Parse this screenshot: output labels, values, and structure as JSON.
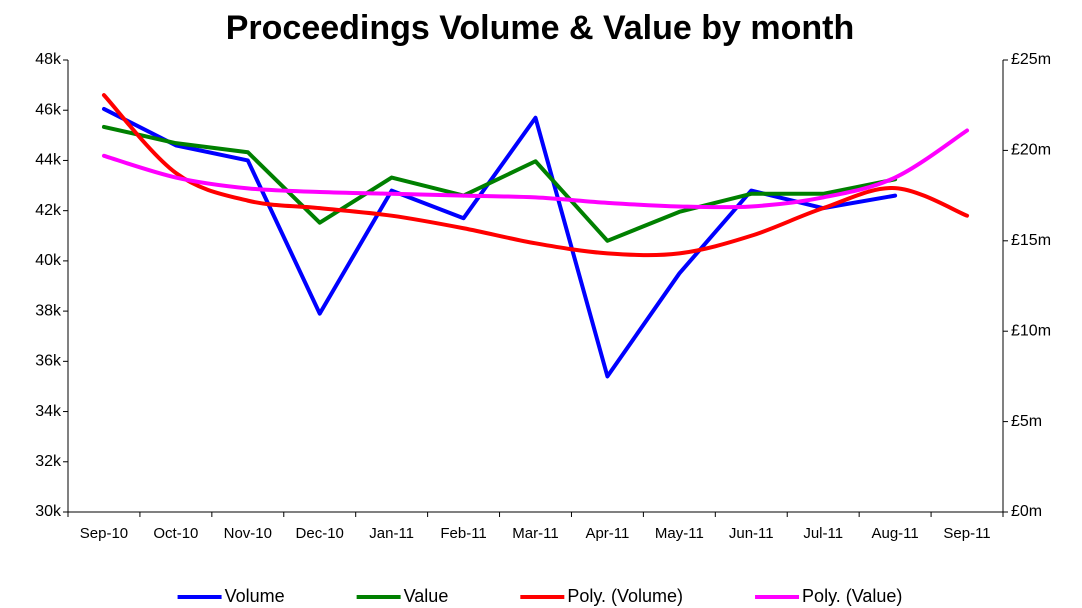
{
  "chart_data": {
    "type": "line",
    "title": "Proceedings Volume & Value by month",
    "categories": [
      "Sep-10",
      "Oct-10",
      "Nov-10",
      "Dec-10",
      "Jan-11",
      "Feb-11",
      "Mar-11",
      "Apr-11",
      "May-11",
      "Jun-11",
      "Jul-11",
      "Aug-11",
      "Sep-11"
    ],
    "series": [
      {
        "name": "Volume",
        "color": "#0000ff",
        "smooth": false,
        "values": [
          46050,
          44600,
          44000,
          37900,
          42800,
          41700,
          45700,
          35400,
          39500,
          42800,
          42100,
          42600,
          null
        ]
      },
      {
        "name": "Value",
        "color": "#008000",
        "axis": "y2",
        "smooth": false,
        "values": [
          21.3,
          20.4,
          19.9,
          16.0,
          18.5,
          17.5,
          19.4,
          15.0,
          16.6,
          17.6,
          17.6,
          18.4,
          null
        ]
      },
      {
        "name": "Poly. (Volume)",
        "color": "#ff0000",
        "smooth": true,
        "values": [
          46600,
          43500,
          42400,
          42100,
          41800,
          41300,
          40700,
          40300,
          40300,
          41000,
          42100,
          42900,
          41800
        ]
      },
      {
        "name": "Poly. (Value)",
        "color": "#ff00ff",
        "axis": "y2",
        "smooth": true,
        "values": [
          19.7,
          18.5,
          17.9,
          17.7,
          17.6,
          17.5,
          17.4,
          17.1,
          16.9,
          16.9,
          17.4,
          18.5,
          21.1
        ]
      }
    ],
    "ylim": [
      30000,
      48000
    ],
    "yticks": [
      {
        "value": 30000,
        "label": "30k"
      },
      {
        "value": 32000,
        "label": "32k"
      },
      {
        "value": 34000,
        "label": "34k"
      },
      {
        "value": 36000,
        "label": "36k"
      },
      {
        "value": 38000,
        "label": "38k"
      },
      {
        "value": 40000,
        "label": "40k"
      },
      {
        "value": 42000,
        "label": "42k"
      },
      {
        "value": 44000,
        "label": "44k"
      },
      {
        "value": 46000,
        "label": "46k"
      },
      {
        "value": 48000,
        "label": "48k"
      }
    ],
    "y2lim": [
      0,
      25
    ],
    "y2ticks": [
      {
        "value": 0,
        "label": "£0m"
      },
      {
        "value": 5,
        "label": "£5m"
      },
      {
        "value": 10,
        "label": "£10m"
      },
      {
        "value": 15,
        "label": "£15m"
      },
      {
        "value": 20,
        "label": "£20m"
      },
      {
        "value": 25,
        "label": "£25m"
      }
    ],
    "grid": false,
    "legend": "bottom"
  }
}
